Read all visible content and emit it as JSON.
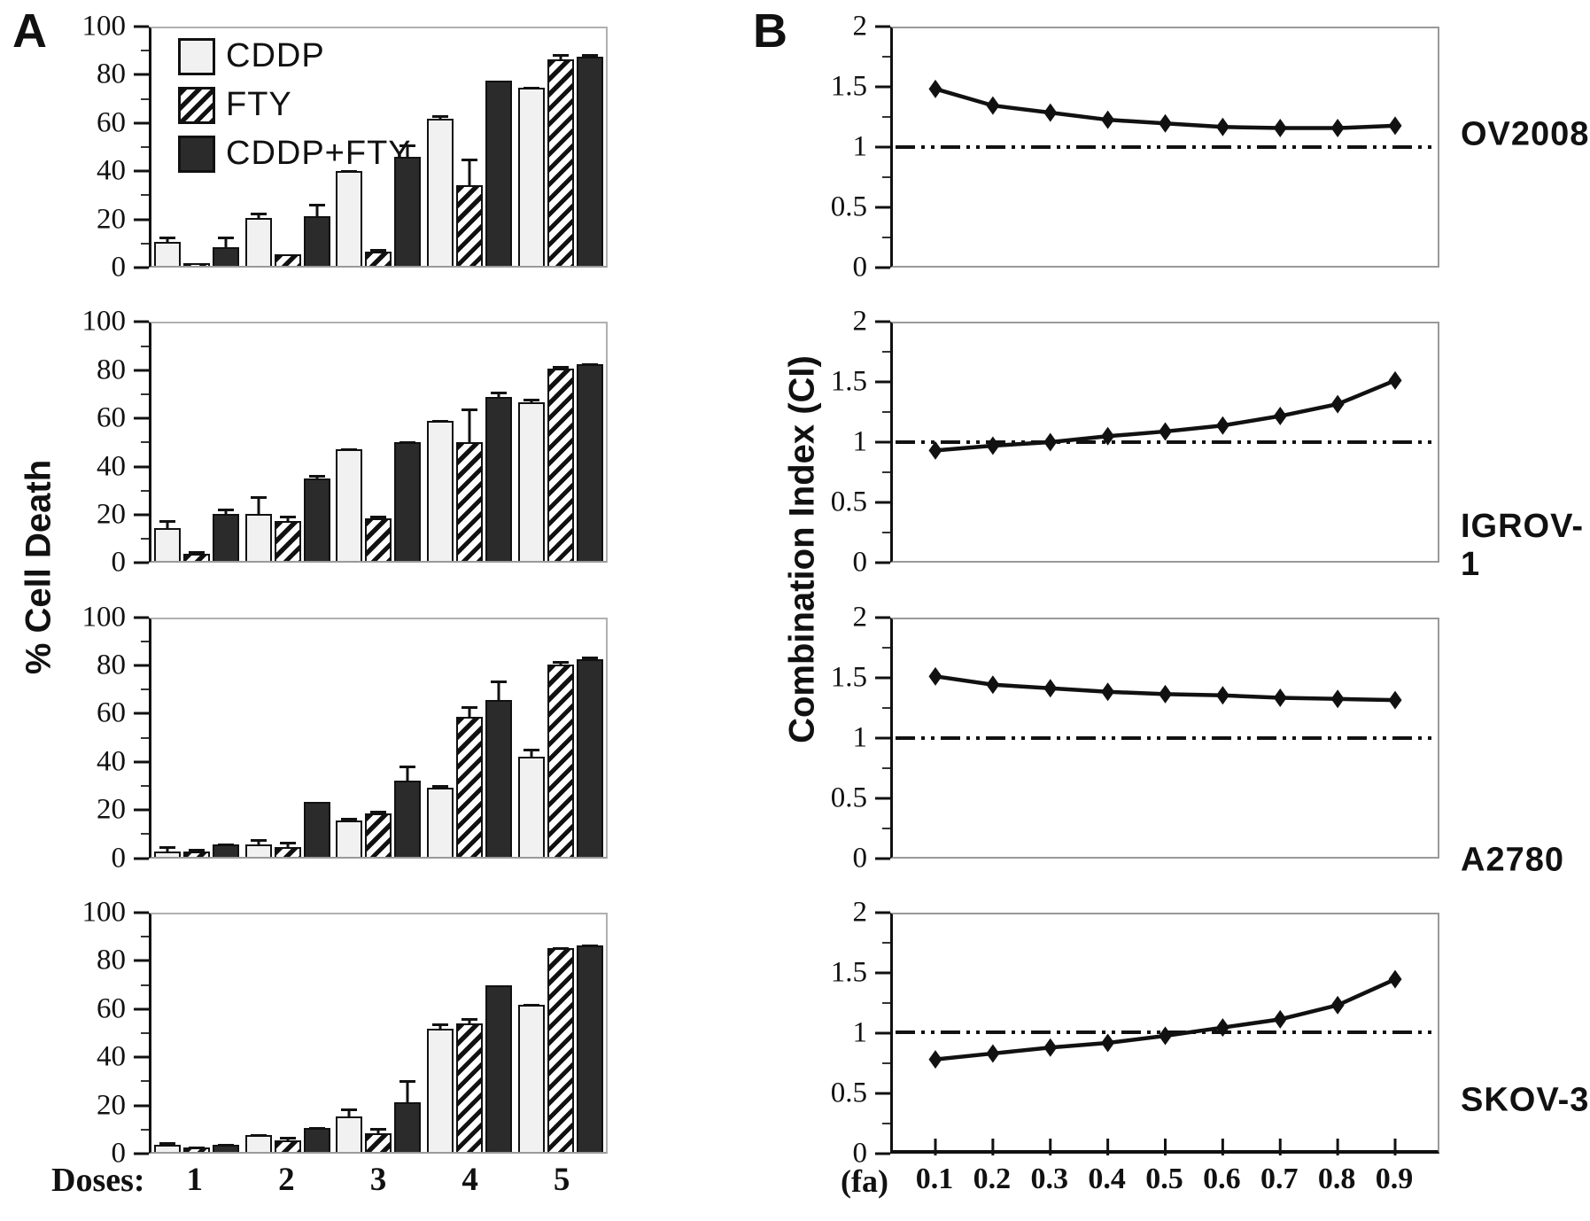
{
  "panel_a": {
    "label": "A",
    "y_axis_label": "% Cell Death",
    "x_axis_label": "Doses:",
    "dose_labels": [
      "1",
      "2",
      "3",
      "4",
      "5"
    ],
    "y_ticks": [
      0,
      20,
      40,
      60,
      80,
      100
    ],
    "legend": [
      "CDDP",
      "FTY",
      "CDDP+FTY"
    ],
    "colors": {
      "cddp_fill": "#f1f1f1",
      "hatch_color": "#111111",
      "combo_fill": "#2b2b2b"
    }
  },
  "panel_b": {
    "label": "B",
    "y_axis_label": "Combination Index (CI)",
    "x_axis_prefix": "(fa)",
    "x_tick_labels": [
      "0.1",
      "0.2",
      "0.3",
      "0.4",
      "0.5",
      "0.6",
      "0.7",
      "0.8",
      "0.9"
    ],
    "y_tick_labels": [
      "0",
      "0.5",
      "1",
      "1.5",
      "2"
    ],
    "line_color": "#111111"
  },
  "chart_data": [
    {
      "type": "bar",
      "panel": "A",
      "row": 1,
      "categories": [
        "1",
        "2",
        "3",
        "4",
        "5"
      ],
      "series": [
        {
          "name": "CDDP",
          "values": [
            10,
            20,
            40,
            62,
            75
          ],
          "errors": [
            3,
            3,
            1,
            2,
            1
          ]
        },
        {
          "name": "FTY",
          "values": [
            1,
            5,
            6,
            34,
            87
          ],
          "errors": [
            0,
            0,
            2,
            12,
            3
          ]
        },
        {
          "name": "CDDP+FTY",
          "values": [
            8,
            21,
            46,
            78,
            88
          ],
          "errors": [
            5,
            6,
            6,
            0,
            2
          ]
        }
      ],
      "ylim": [
        0,
        100
      ],
      "yticks": [
        0,
        20,
        40,
        60,
        80,
        100
      ],
      "yticks_minor": [
        10,
        30,
        50,
        70,
        90
      ]
    },
    {
      "type": "bar",
      "panel": "A",
      "row": 2,
      "categories": [
        "1",
        "2",
        "3",
        "4",
        "5"
      ],
      "series": [
        {
          "name": "CDDP",
          "values": [
            14,
            20,
            47,
            59,
            67
          ],
          "errors": [
            4,
            8,
            1,
            1,
            2
          ]
        },
        {
          "name": "FTY",
          "values": [
            3,
            17,
            18,
            50,
            81
          ],
          "errors": [
            2,
            3,
            2,
            15,
            2
          ]
        },
        {
          "name": "CDDP+FTY",
          "values": [
            20,
            35,
            50,
            69,
            83
          ],
          "errors": [
            3,
            2,
            1,
            3,
            1
          ]
        }
      ],
      "ylim": [
        0,
        100
      ],
      "yticks": [
        0,
        20,
        40,
        60,
        80,
        100
      ],
      "yticks_minor": [
        10,
        30,
        50,
        70,
        90
      ]
    },
    {
      "type": "bar",
      "panel": "A",
      "row": 3,
      "categories": [
        "1",
        "2",
        "3",
        "4",
        "5"
      ],
      "series": [
        {
          "name": "CDDP",
          "values": [
            2,
            5,
            15,
            29,
            42
          ],
          "errors": [
            3,
            3,
            2,
            2,
            4
          ]
        },
        {
          "name": "FTY",
          "values": [
            2,
            4,
            18,
            59,
            81
          ],
          "errors": [
            2,
            3,
            2,
            5,
            2
          ]
        },
        {
          "name": "CDDP+FTY",
          "values": [
            5,
            23,
            32,
            66,
            83
          ],
          "errors": [
            1,
            0,
            7,
            9,
            2
          ]
        }
      ],
      "ylim": [
        0,
        100
      ],
      "yticks": [
        0,
        20,
        40,
        60,
        80,
        100
      ],
      "yticks_minor": [
        10,
        30,
        50,
        70,
        90
      ]
    },
    {
      "type": "bar",
      "panel": "A",
      "row": 4,
      "categories": [
        "1",
        "2",
        "3",
        "4",
        "5"
      ],
      "series": [
        {
          "name": "CDDP",
          "values": [
            3,
            7,
            15,
            52,
            62
          ],
          "errors": [
            2,
            1,
            4,
            3,
            1
          ]
        },
        {
          "name": "FTY",
          "values": [
            2,
            5,
            8,
            54,
            86
          ],
          "errors": [
            1,
            2,
            3,
            3,
            1
          ]
        },
        {
          "name": "CDDP+FTY",
          "values": [
            3,
            10,
            21,
            70,
            87
          ],
          "errors": [
            1,
            1,
            10,
            0,
            1
          ]
        }
      ],
      "ylim": [
        0,
        100
      ],
      "yticks": [
        0,
        20,
        40,
        60,
        80,
        100
      ],
      "yticks_minor": [
        10,
        30,
        50,
        70,
        90
      ]
    },
    {
      "type": "line",
      "panel": "B",
      "label": "OV2008",
      "marker": "diamond",
      "x": [
        0.1,
        0.2,
        0.3,
        0.4,
        0.5,
        0.6,
        0.7,
        0.8,
        0.9
      ],
      "values": [
        1.49,
        1.35,
        1.29,
        1.23,
        1.2,
        1.17,
        1.16,
        1.16,
        1.18
      ],
      "reference_line": 1.0,
      "ylim": [
        0,
        2
      ],
      "yticks": [
        0,
        0.5,
        1,
        1.5,
        2
      ],
      "yticks_minor": [
        0.25,
        0.75,
        1.25,
        1.75
      ],
      "label_y_pct": 45,
      "x_ticks_visible": false
    },
    {
      "type": "line",
      "panel": "B",
      "label": "IGROV-1",
      "marker": "diamond",
      "x": [
        0.1,
        0.2,
        0.3,
        0.4,
        0.5,
        0.6,
        0.7,
        0.8,
        0.9
      ],
      "values": [
        0.93,
        0.97,
        1.0,
        1.05,
        1.09,
        1.14,
        1.22,
        1.32,
        1.52
      ],
      "reference_line": 1.0,
      "ylim": [
        0,
        2
      ],
      "yticks": [
        0,
        0.5,
        1,
        1.5,
        2
      ],
      "yticks_minor": [
        0.25,
        0.75,
        1.25,
        1.75
      ],
      "label_y_pct": 93,
      "x_ticks_visible": false
    },
    {
      "type": "line",
      "panel": "B",
      "label": "A2780",
      "marker": "diamond",
      "x": [
        0.1,
        0.2,
        0.3,
        0.4,
        0.5,
        0.6,
        0.7,
        0.8,
        0.9
      ],
      "values": [
        1.52,
        1.45,
        1.42,
        1.39,
        1.37,
        1.36,
        1.34,
        1.33,
        1.32
      ],
      "reference_line": 1.0,
      "ylim": [
        0,
        2
      ],
      "yticks": [
        0,
        0.5,
        1,
        1.5,
        2
      ],
      "yticks_minor": [
        0.25,
        0.75,
        1.25,
        1.75
      ],
      "label_y_pct": 101,
      "x_ticks_visible": false
    },
    {
      "type": "line",
      "panel": "B",
      "label": "SKOV-3",
      "marker": "diamond",
      "x": [
        0.1,
        0.2,
        0.3,
        0.4,
        0.5,
        0.6,
        0.7,
        0.8,
        0.9
      ],
      "values": [
        0.77,
        0.82,
        0.87,
        0.91,
        0.97,
        1.04,
        1.11,
        1.23,
        1.45
      ],
      "reference_line": 1.0,
      "ylim": [
        0,
        2
      ],
      "yticks": [
        0,
        0.5,
        1,
        1.5,
        2
      ],
      "yticks_minor": [
        0.25,
        0.75,
        1.25,
        1.75
      ],
      "label_y_pct": 78,
      "x_ticks_visible": true
    }
  ]
}
